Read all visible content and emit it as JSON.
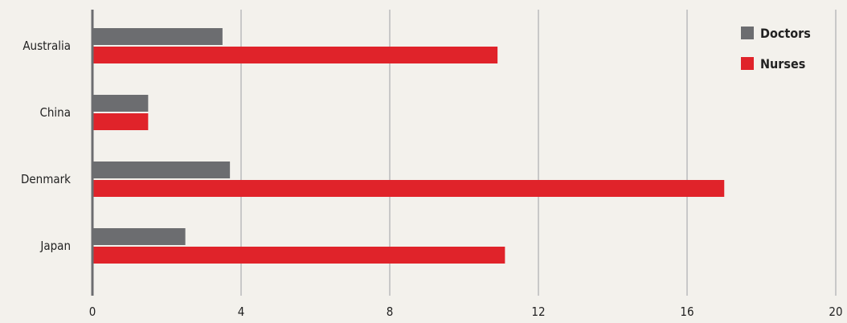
{
  "chart_data": {
    "type": "bar",
    "orientation": "horizontal",
    "categories": [
      "Australia",
      "China",
      "Denmark",
      "Japan"
    ],
    "series": [
      {
        "name": "Doctors",
        "values": [
          3.5,
          1.5,
          3.7,
          2.5
        ],
        "color": "#6c6d70"
      },
      {
        "name": "Nurses",
        "values": [
          10.9,
          1.5,
          17.0,
          11.1
        ],
        "color": "#e0232a"
      }
    ],
    "x_ticks": [
      "0",
      "4",
      "8",
      "12",
      "16",
      "20"
    ],
    "xlim": [
      0,
      20
    ],
    "grid": true,
    "legend_position": "top-right",
    "title": "",
    "xlabel": "",
    "ylabel": ""
  }
}
